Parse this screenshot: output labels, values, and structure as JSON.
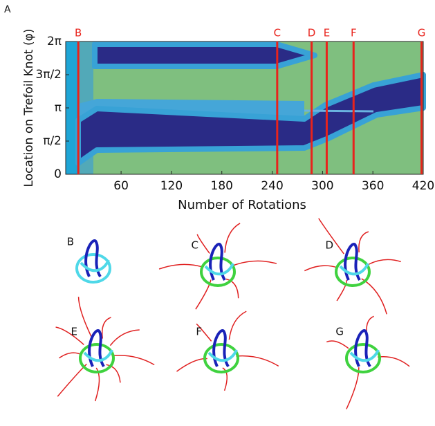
{
  "chart_data": {
    "type": "phase-map",
    "panel_label": "A",
    "x_label": "Number of Rotations",
    "y_label": "Location on Trefoil Knot (φ)",
    "xlim": [
      -6,
      420
    ],
    "xticks": [
      60,
      120,
      180,
      240,
      300,
      360,
      420
    ],
    "ylim": [
      0,
      6.2832
    ],
    "yticks": [
      0,
      {
        "value": 1.5708,
        "label": "π/2"
      },
      {
        "value": 3.1416,
        "label": "π"
      },
      {
        "value": 4.7124,
        "label": "3π/2"
      },
      {
        "value": 6.2832,
        "label": "2π"
      }
    ],
    "marker_color": "#e8231c",
    "markers": [
      {
        "label": "B",
        "x": 9
      },
      {
        "label": "C",
        "x": 246
      },
      {
        "label": "D",
        "x": 287
      },
      {
        "label": "E",
        "x": 305
      },
      {
        "label": "F",
        "x": 337
      },
      {
        "label": "G",
        "x": 418
      }
    ]
  }
}
